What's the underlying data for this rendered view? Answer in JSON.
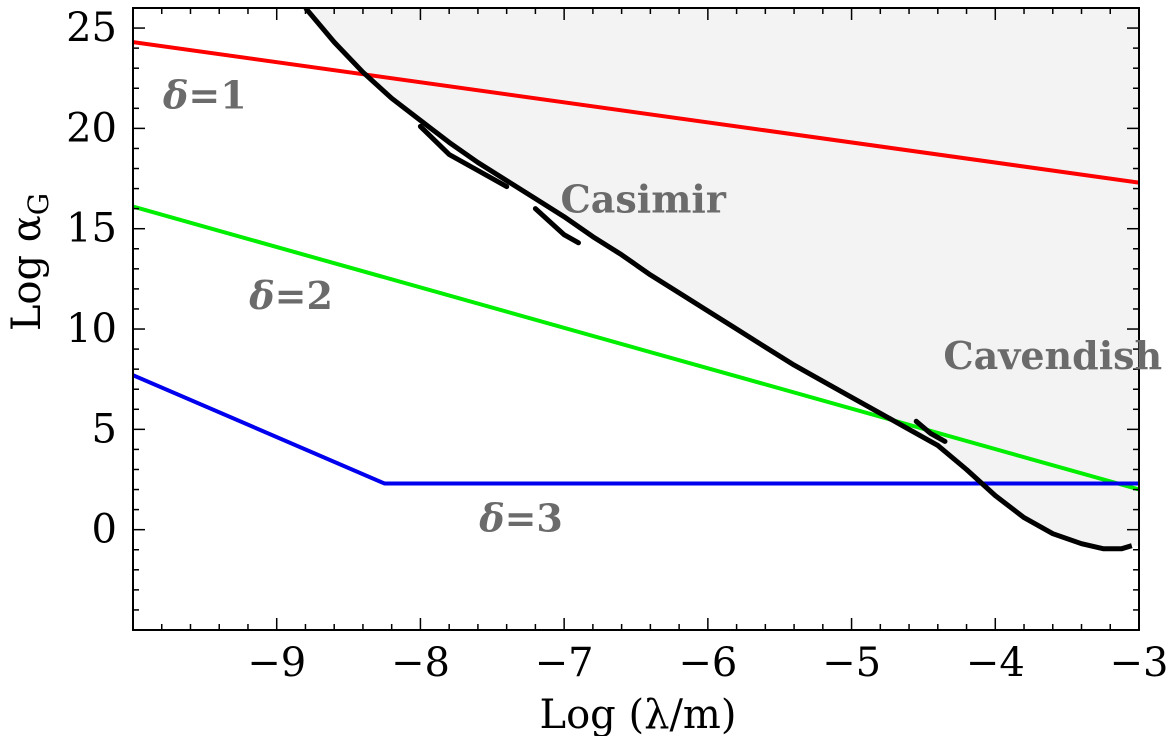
{
  "chart_data": {
    "type": "line",
    "xlabel": "Log (λ/m)",
    "ylabel_main": "Log α",
    "ylabel_sub": "G",
    "xlim": [
      -10,
      -3
    ],
    "ylim": [
      -5,
      26
    ],
    "x_ticks": [
      {
        "value": -9,
        "label": "−9"
      },
      {
        "value": -8,
        "label": "−8"
      },
      {
        "value": -7,
        "label": "−7"
      },
      {
        "value": -6,
        "label": "−6"
      },
      {
        "value": -5,
        "label": "−5"
      },
      {
        "value": -4,
        "label": "−4"
      },
      {
        "value": -3,
        "label": "−3"
      }
    ],
    "y_ticks": [
      {
        "value": 0,
        "label": "0"
      },
      {
        "value": 5,
        "label": "5"
      },
      {
        "value": 10,
        "label": "10"
      },
      {
        "value": 15,
        "label": "15"
      },
      {
        "value": 20,
        "label": "20"
      },
      {
        "value": 25,
        "label": "25"
      }
    ],
    "minor_tick_step_x": 0.2,
    "minor_tick_step_y": 1,
    "grid": false,
    "excluded_region": {
      "fill": "#f3f3f3",
      "boundary_color": "#000000",
      "boundary": [
        [
          -8.8,
          26.0
        ],
        [
          -8.6,
          24.3
        ],
        [
          -8.4,
          22.8
        ],
        [
          -8.2,
          21.5
        ],
        [
          -8.0,
          20.4
        ],
        [
          -7.8,
          19.3
        ],
        [
          -7.6,
          18.3
        ],
        [
          -7.4,
          17.4
        ],
        [
          -7.2,
          16.5
        ],
        [
          -7.0,
          15.6
        ],
        [
          -6.8,
          14.6
        ],
        [
          -6.6,
          13.7
        ],
        [
          -6.4,
          12.7
        ],
        [
          -6.2,
          11.8
        ],
        [
          -6.0,
          10.9
        ],
        [
          -5.8,
          10.0
        ],
        [
          -5.6,
          9.1
        ],
        [
          -5.4,
          8.2
        ],
        [
          -5.2,
          7.4
        ],
        [
          -5.0,
          6.6
        ],
        [
          -4.8,
          5.8
        ],
        [
          -4.6,
          5.0
        ],
        [
          -4.4,
          4.2
        ],
        [
          -4.2,
          3.0
        ],
        [
          -4.0,
          1.7
        ],
        [
          -3.8,
          0.6
        ],
        [
          -3.6,
          -0.2
        ],
        [
          -3.4,
          -0.7
        ],
        [
          -3.25,
          -0.95
        ],
        [
          -3.12,
          -0.95
        ],
        [
          -3.05,
          -0.8
        ]
      ],
      "spurs": [
        [
          [
            -8.0,
            20.1
          ],
          [
            -7.8,
            18.7
          ],
          [
            -7.6,
            17.9
          ],
          [
            -7.4,
            17.1
          ]
        ],
        [
          [
            -7.2,
            16.0
          ],
          [
            -7.0,
            14.7
          ],
          [
            -6.9,
            14.3
          ]
        ],
        [
          [
            -4.55,
            5.4
          ],
          [
            -4.45,
            4.8
          ],
          [
            -4.35,
            4.4
          ]
        ]
      ]
    },
    "region_labels": [
      {
        "text": "Casimir",
        "x": -6.45,
        "y": 15.8
      },
      {
        "text": "Cavendish",
        "x": -3.6,
        "y": 8.0
      }
    ],
    "series": [
      {
        "name": "δ=1",
        "color": "#ff0000",
        "points": [
          [
            -10,
            24.3
          ],
          [
            -3,
            17.3
          ]
        ],
        "label_x": -9.5,
        "label_y": 21.0
      },
      {
        "name": "δ=2",
        "color": "#00ee00",
        "points": [
          [
            -10,
            16.1
          ],
          [
            -3,
            2.0
          ]
        ],
        "label_x": -8.9,
        "label_y": 11.0
      },
      {
        "name": "δ=3",
        "color": "#0000ee",
        "points": [
          [
            -10,
            7.7
          ],
          [
            -8.25,
            2.3
          ],
          [
            -3,
            2.3
          ]
        ],
        "label_x": -7.3,
        "label_y": -0.1
      }
    ]
  }
}
